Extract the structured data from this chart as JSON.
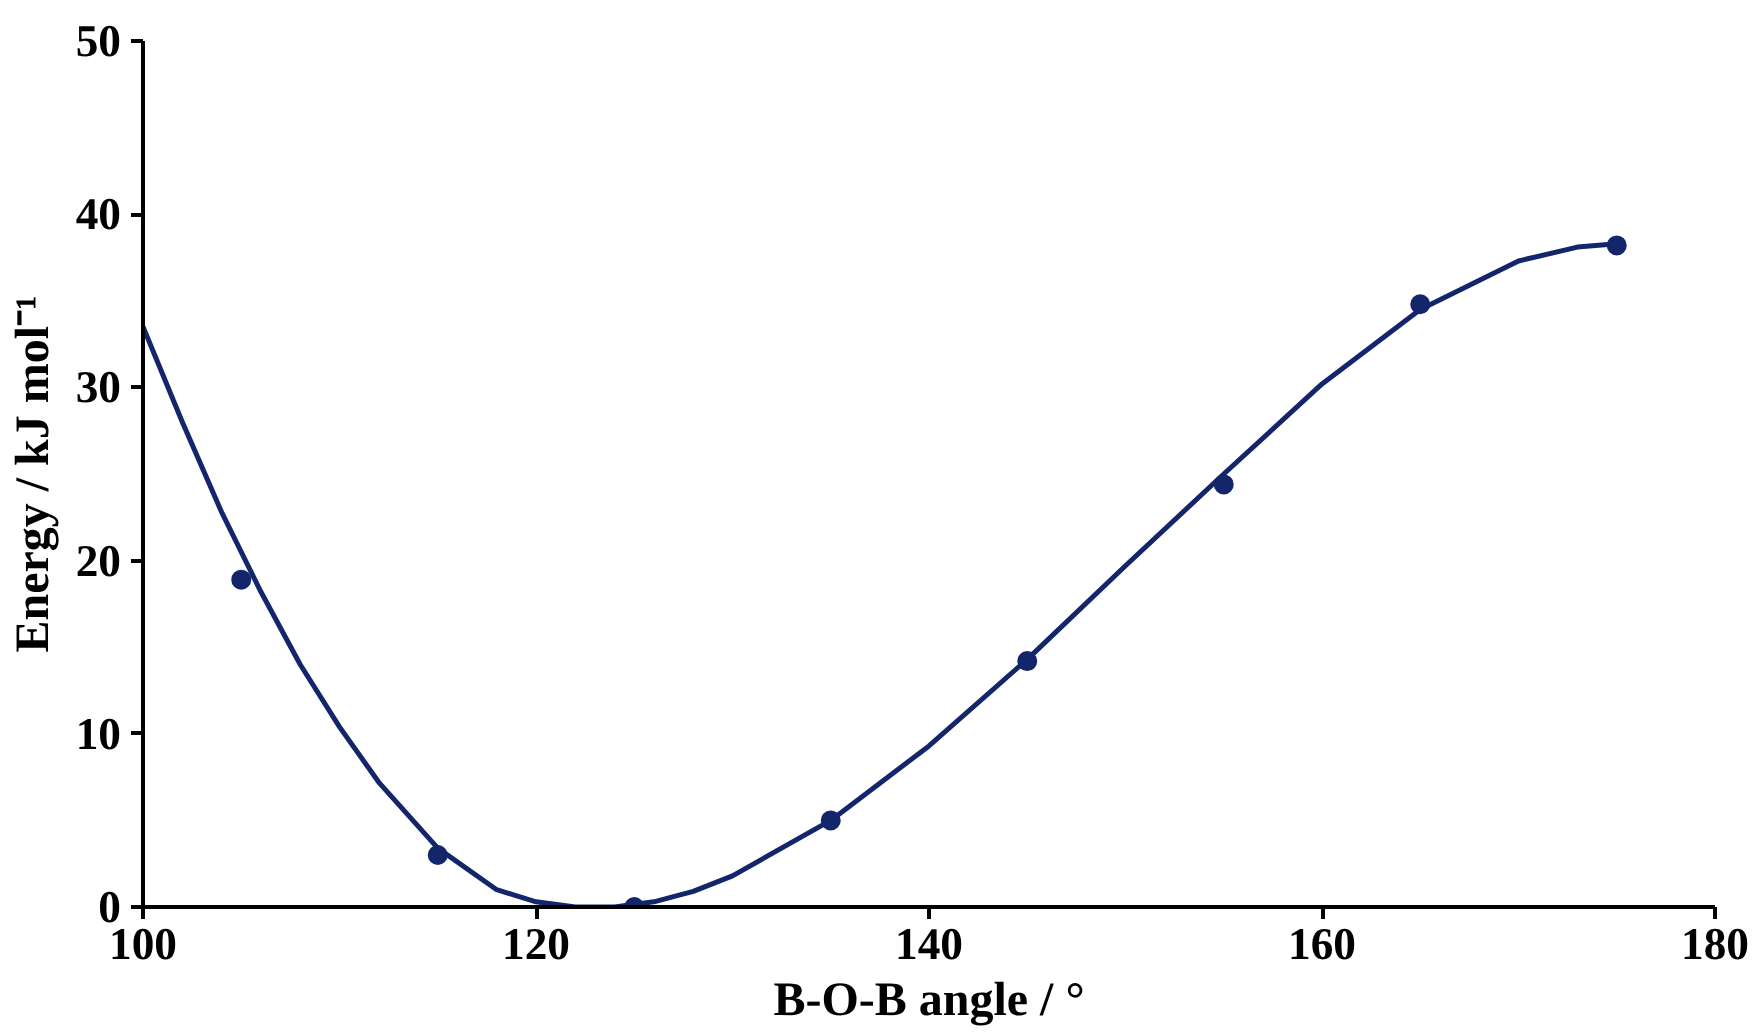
{
  "chart_data": {
    "type": "scatter",
    "xlabel": "B-O-B angle / °",
    "ylabel": "Energy / kJ mol⁻¹",
    "xlim": [
      100,
      180
    ],
    "xticks": [
      100,
      120,
      140,
      160,
      180
    ],
    "ylim": [
      0,
      50
    ],
    "yticks": [
      0,
      10,
      20,
      30,
      40,
      50
    ],
    "grid": false,
    "series": [
      {
        "color": "#13266b",
        "marker": "circle",
        "x": [
          105,
          115,
          125,
          135,
          145,
          155,
          165,
          175
        ],
        "values": [
          18.9,
          3.0,
          0.0,
          5.0,
          14.2,
          24.4,
          34.8,
          38.2
        ]
      },
      {
        "type": "line",
        "color": "#13266b",
        "line_style": "solid",
        "x": [
          100,
          102,
          104,
          106,
          108,
          110,
          112,
          115,
          118,
          120,
          122,
          124,
          126,
          128,
          130,
          135,
          140,
          145,
          150,
          155,
          160,
          165,
          170,
          173,
          175
        ],
        "values": [
          33.5,
          28.0,
          22.8,
          18.2,
          14.0,
          10.4,
          7.2,
          3.4,
          1.0,
          0.3,
          0.0,
          0.0,
          0.3,
          0.9,
          1.8,
          5.0,
          9.3,
          14.3,
          19.7,
          25.0,
          30.2,
          34.5,
          37.3,
          38.1,
          38.3
        ]
      }
    ]
  }
}
